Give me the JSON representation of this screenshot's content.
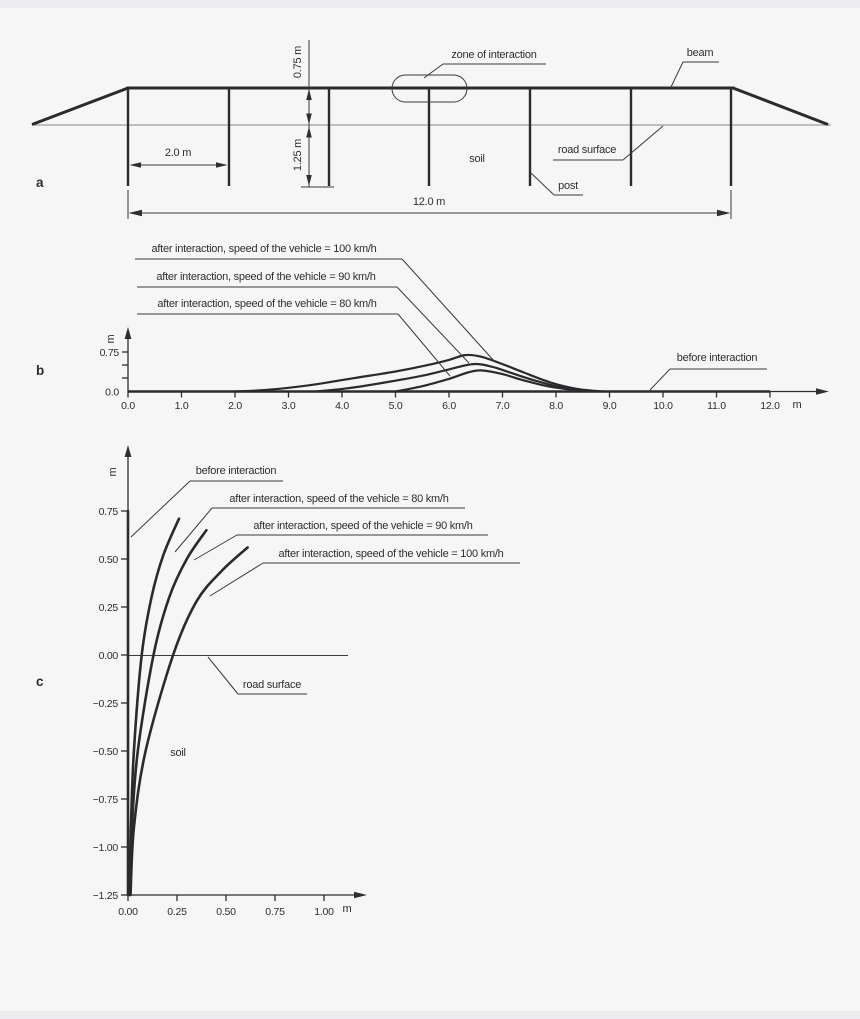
{
  "figure": {
    "description": "Road safety barrier: scheme and beam/post displacement plots",
    "background_color": "#f6f6f7",
    "line_color": "#2b2b2e"
  },
  "panel_a": {
    "letter": "a",
    "labels": {
      "zone_of_interaction": "zone of interaction",
      "beam": "beam",
      "road_surface": "road surface",
      "post": "post",
      "soil": "soil"
    },
    "dimensions": {
      "beam_height": "0.75 m",
      "post_embedment": "1.25 m",
      "post_spacing": "2.0 m",
      "total_length": "12.0 m"
    }
  },
  "panel_b": {
    "letter": "b",
    "y_axis_unit": "m",
    "x_axis_unit": "m",
    "y_ticks": [
      "0.75",
      "0.0"
    ],
    "x_ticks": [
      "0.0",
      "1.0",
      "2.0",
      "3.0",
      "4.0",
      "5.0",
      "6.0",
      "7.0",
      "8.0",
      "9.0",
      "10.0",
      "11.0",
      "12.0"
    ],
    "curve_labels": {
      "v100": "after interaction, speed of the vehicle = 100 km/h",
      "v90": "after interaction, speed of the vehicle = 90 km/h",
      "v80": "after interaction, speed of the vehicle = 80 km/h",
      "before": "before interaction"
    }
  },
  "panel_c": {
    "letter": "c",
    "y_axis_unit": "m",
    "x_axis_unit": "m",
    "y_ticks": [
      "0.75",
      "0.50",
      "0.25",
      "0.00",
      "−0.25",
      "−0.50",
      "−0.75",
      "−1.00",
      "−1.25"
    ],
    "x_ticks": [
      "0.00",
      "0.25",
      "0.50",
      "0.75",
      "1.00"
    ],
    "curve_labels": {
      "before": "before interaction",
      "v80": "after interaction, speed of the vehicle = 80 km/h",
      "v90": "after interaction, speed of the vehicle = 90 km/h",
      "v100": "after interaction, speed of the vehicle = 100 km/h"
    },
    "labels": {
      "road_surface": "road surface",
      "soil": "soil"
    }
  },
  "chart_data": [
    {
      "panel": "b",
      "type": "line",
      "title": "Beam lateral displacement along barrier length",
      "xlabel": "m",
      "ylabel": "m",
      "x_range": [
        0,
        12
      ],
      "y_range": [
        0,
        0.75
      ],
      "grid": false,
      "series": [
        {
          "name": "before",
          "label": "before interaction",
          "straight": true,
          "points": [
            [
              0,
              0
            ],
            [
              12,
              0
            ]
          ]
        },
        {
          "name": "v100",
          "label": "after interaction, speed of the vehicle = 100 km/h",
          "points": [
            [
              2.0,
              0
            ],
            [
              2.6,
              0.03
            ],
            [
              3.4,
              0.12
            ],
            [
              4.2,
              0.25
            ],
            [
              5.0,
              0.38
            ],
            [
              5.6,
              0.5
            ],
            [
              6.0,
              0.6
            ],
            [
              6.3,
              0.69
            ],
            [
              6.6,
              0.66
            ],
            [
              7.0,
              0.52
            ],
            [
              7.4,
              0.36
            ],
            [
              7.9,
              0.17
            ],
            [
              8.4,
              0.05
            ],
            [
              8.9,
              0
            ]
          ]
        },
        {
          "name": "v90",
          "label": "after interaction, speed of the vehicle = 90 km/h",
          "points": [
            [
              3.5,
              0
            ],
            [
              4.1,
              0.06
            ],
            [
              4.8,
              0.17
            ],
            [
              5.5,
              0.3
            ],
            [
              6.0,
              0.42
            ],
            [
              6.45,
              0.52
            ],
            [
              6.8,
              0.47
            ],
            [
              7.2,
              0.34
            ],
            [
              7.6,
              0.21
            ],
            [
              8.1,
              0.08
            ],
            [
              8.7,
              0
            ]
          ]
        },
        {
          "name": "v80",
          "label": "after interaction, speed of the vehicle = 80 km/h",
          "points": [
            [
              5.0,
              0
            ],
            [
              5.5,
              0.1
            ],
            [
              6.0,
              0.24
            ],
            [
              6.35,
              0.36
            ],
            [
              6.6,
              0.4
            ],
            [
              7.0,
              0.33
            ],
            [
              7.4,
              0.21
            ],
            [
              7.9,
              0.09
            ],
            [
              8.6,
              0
            ]
          ]
        }
      ]
    },
    {
      "panel": "c",
      "type": "line",
      "title": "Post deflection profile vs depth",
      "xlabel": "m",
      "ylabel": "m",
      "x_range": [
        0,
        1.0
      ],
      "y_range": [
        -1.25,
        0.75
      ],
      "grid": false,
      "series": [
        {
          "name": "before",
          "label": "before interaction",
          "straight": true,
          "points": [
            [
              0,
              -1.25
            ],
            [
              0,
              0.75
            ]
          ]
        },
        {
          "name": "v80",
          "label": "after interaction, speed of the vehicle = 80 km/h",
          "points": [
            [
              0.008,
              -1.25
            ],
            [
              0.015,
              -0.9
            ],
            [
              0.03,
              -0.5
            ],
            [
              0.07,
              0.0
            ],
            [
              0.12,
              0.3
            ],
            [
              0.18,
              0.52
            ],
            [
              0.26,
              0.71
            ]
          ]
        },
        {
          "name": "v90",
          "label": "after interaction, speed of the vehicle = 90 km/h",
          "points": [
            [
              0.01,
              -1.25
            ],
            [
              0.02,
              -0.9
            ],
            [
              0.05,
              -0.5
            ],
            [
              0.13,
              0.0
            ],
            [
              0.21,
              0.3
            ],
            [
              0.3,
              0.5
            ],
            [
              0.4,
              0.65
            ]
          ]
        },
        {
          "name": "v100",
          "label": "after interaction, speed of the vehicle = 100 km/h",
          "points": [
            [
              0.013,
              -1.25
            ],
            [
              0.03,
              -0.9
            ],
            [
              0.09,
              -0.5
            ],
            [
              0.23,
              0.0
            ],
            [
              0.35,
              0.28
            ],
            [
              0.48,
              0.44
            ],
            [
              0.61,
              0.56
            ]
          ]
        }
      ]
    }
  ]
}
